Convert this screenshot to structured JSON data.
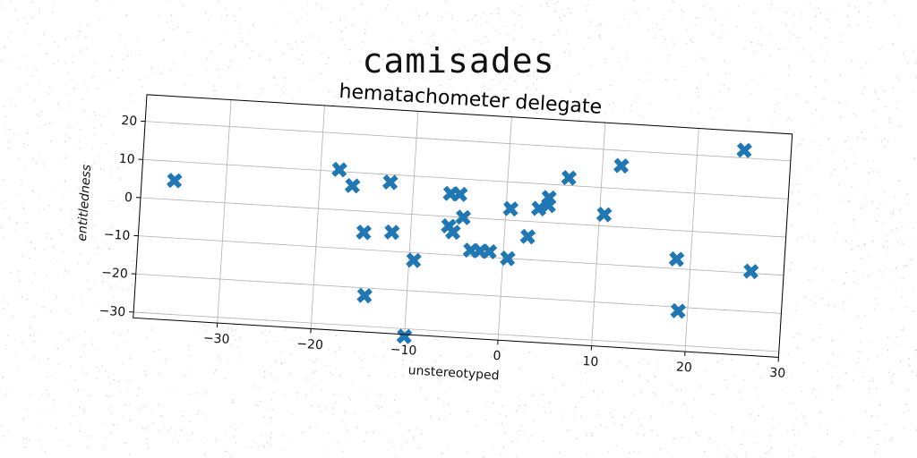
{
  "suptitle": "camisades",
  "chart_data": {
    "type": "scatter",
    "title": "hematachometer delegate",
    "xlabel": "unstereotyped",
    "ylabel": "entitledness",
    "xlim": [
      -39,
      30
    ],
    "ylim": [
      -31.5,
      27
    ],
    "xticks": [
      -30,
      -20,
      -10,
      0,
      10,
      20,
      30
    ],
    "yticks": [
      -30,
      -20,
      -10,
      0,
      10,
      20
    ],
    "grid": true,
    "marker": "X",
    "color": "#1f77b4",
    "points": [
      {
        "x": -35.5,
        "y": 5
      },
      {
        "x": -18.0,
        "y": 10.5
      },
      {
        "x": -16.5,
        "y": 6.5
      },
      {
        "x": -12.5,
        "y": 8
      },
      {
        "x": -15.0,
        "y": -5.5
      },
      {
        "x": -12.0,
        "y": -5
      },
      {
        "x": -14.5,
        "y": -22
      },
      {
        "x": -9.5,
        "y": -12
      },
      {
        "x": -10.0,
        "y": -32
      },
      {
        "x": -6.0,
        "y": 6
      },
      {
        "x": -5.0,
        "y": 6
      },
      {
        "x": -6.0,
        "y": -2.5
      },
      {
        "x": -5.5,
        "y": -4
      },
      {
        "x": -4.5,
        "y": 0
      },
      {
        "x": -3.5,
        "y": -8.5
      },
      {
        "x": -2.5,
        "y": -8.5
      },
      {
        "x": -1.5,
        "y": -8.5
      },
      {
        "x": 0.5,
        "y": 3
      },
      {
        "x": 0.5,
        "y": -10
      },
      {
        "x": 2.5,
        "y": -4
      },
      {
        "x": 3.5,
        "y": 3.5
      },
      {
        "x": 4.5,
        "y": 4.5
      },
      {
        "x": 4.5,
        "y": 6.5
      },
      {
        "x": 6.5,
        "y": 12
      },
      {
        "x": 10.5,
        "y": 3
      },
      {
        "x": 12.0,
        "y": 16
      },
      {
        "x": 18.5,
        "y": -7.5
      },
      {
        "x": 19.0,
        "y": -21
      },
      {
        "x": 25.0,
        "y": 22
      },
      {
        "x": 26.5,
        "y": -9.5
      }
    ]
  }
}
